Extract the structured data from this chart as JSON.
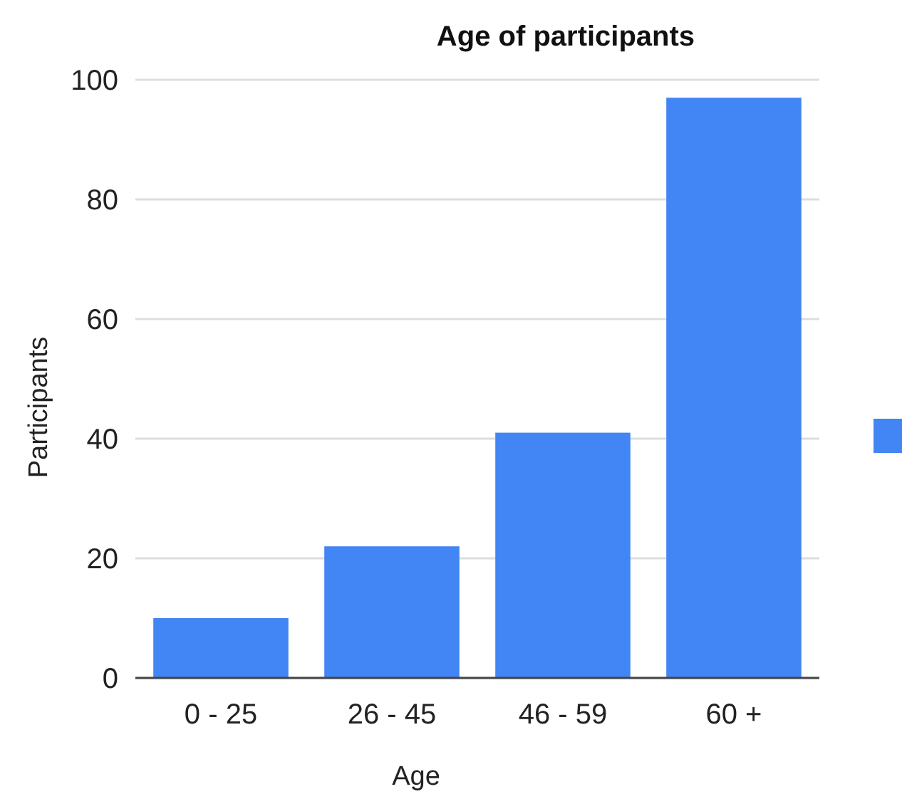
{
  "chart_data": {
    "type": "bar",
    "title": "Age of participants",
    "xlabel": "Age",
    "ylabel": "Participants",
    "categories": [
      "0 - 25",
      "26 - 45",
      "46 - 59",
      "60 +"
    ],
    "values": [
      10,
      22,
      41,
      97
    ],
    "color": "#4285f4",
    "ylim": [
      0,
      100
    ],
    "yticks": [
      0,
      20,
      40,
      60,
      80,
      100
    ],
    "grid": "y"
  }
}
